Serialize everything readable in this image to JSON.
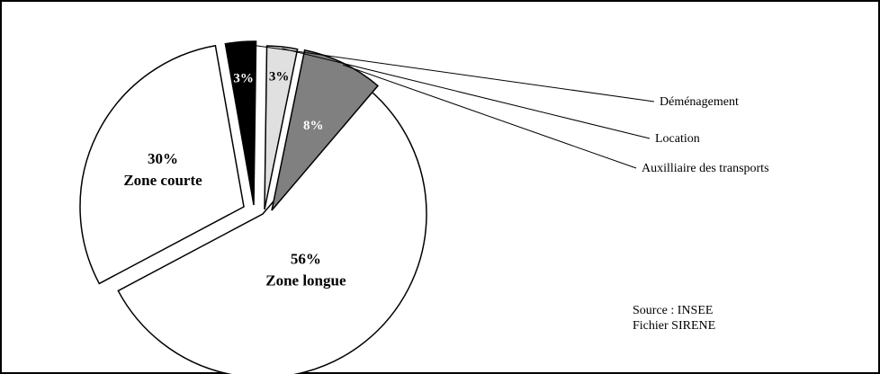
{
  "chart_data": {
    "type": "pie",
    "exploded": true,
    "title": "",
    "slices": [
      {
        "label": "Zone longue",
        "value": 56,
        "value_label": "56%",
        "color": "#ffffff",
        "label_color": "#000000",
        "callout": false
      },
      {
        "label": "Zone courte",
        "value": 30,
        "value_label": "30%",
        "color": "#ffffff",
        "label_color": "#000000",
        "callout": false
      },
      {
        "label": "Déménagement",
        "value": 3,
        "value_label": "3%",
        "color": "#000000",
        "label_color": "#ffffff",
        "callout": true
      },
      {
        "label": "Location",
        "value": 3,
        "value_label": "3%",
        "color": "#e0e0e0",
        "label_color": "#000000",
        "callout": true
      },
      {
        "label": "Auxilliaire des transports",
        "value": 8,
        "value_label": "8%",
        "color": "#808080",
        "label_color": "#ffffff",
        "callout": true
      }
    ]
  },
  "source": {
    "line1": "Source : INSEE",
    "line2": "Fichier SIRENE"
  }
}
